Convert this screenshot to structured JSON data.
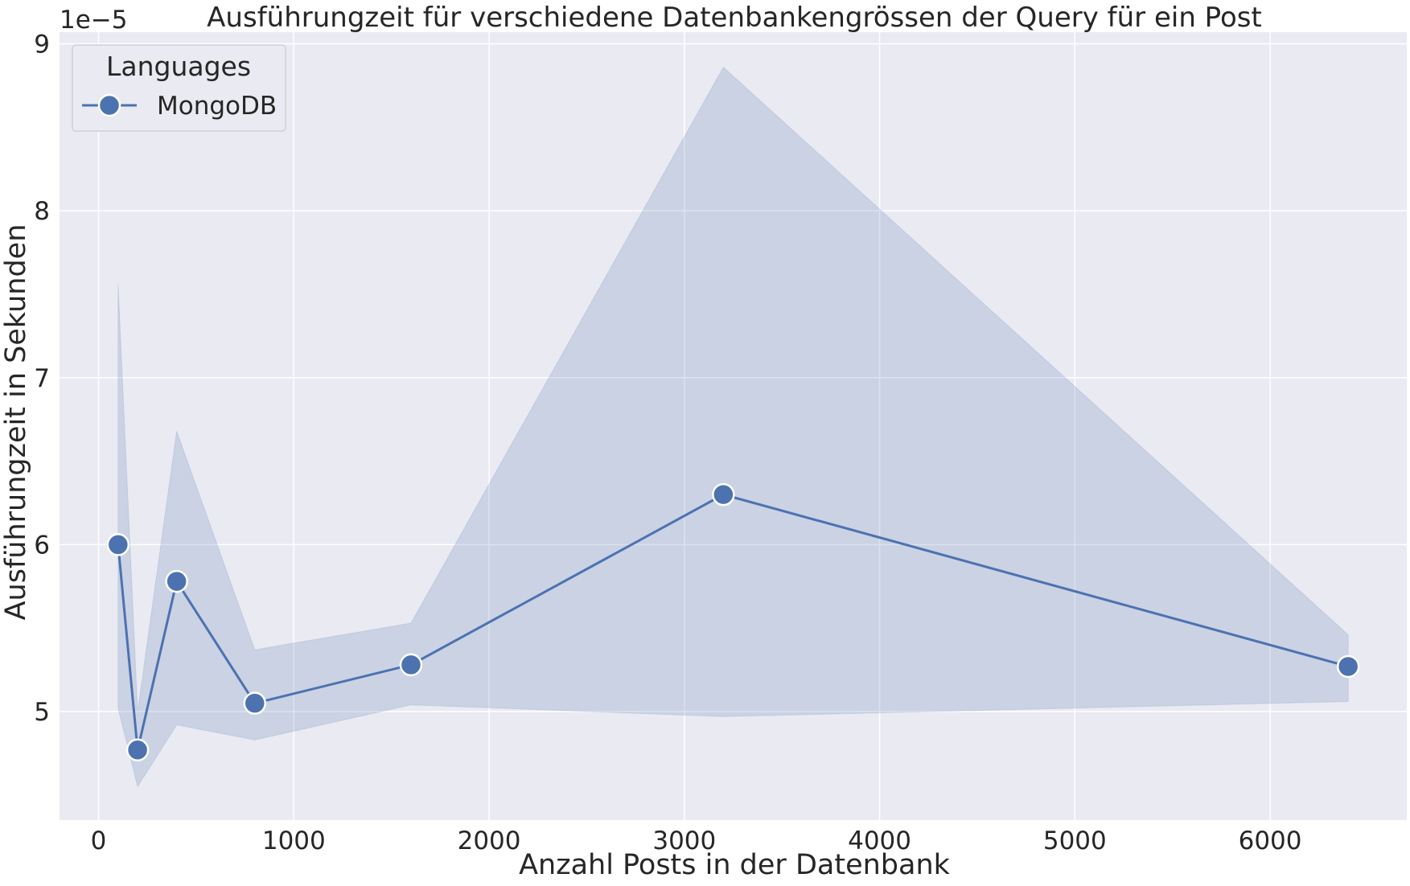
{
  "chart_data": {
    "type": "line",
    "title": "Ausführungzeit für verschiedene Datenbankengrössen der Query für ein Post",
    "xlabel": "Anzahl Posts in der Datenbank",
    "ylabel": "Ausführungzeit in Sekunden",
    "y_offset_label": "1e−5",
    "xlim": [
      -200,
      6700
    ],
    "ylim": [
      4.35,
      9.07
    ],
    "x_ticks": [
      0,
      1000,
      2000,
      3000,
      4000,
      5000,
      6000
    ],
    "y_ticks": [
      5,
      6,
      7,
      8,
      9
    ],
    "grid": true,
    "legend": {
      "title": "Languages",
      "placement": "upper-left"
    },
    "colors": {
      "background": "#eaeaf2",
      "grid": "#ffffff",
      "line": "#4c72b0",
      "band": "#4c72b0"
    },
    "series": [
      {
        "name": "MongoDB",
        "x": [
          100,
          200,
          400,
          800,
          1600,
          3200,
          6400
        ],
        "y": [
          6.0,
          4.77,
          5.78,
          5.05,
          5.28,
          6.3,
          5.27
        ],
        "ci_lower": [
          5.02,
          4.55,
          4.92,
          4.83,
          5.04,
          4.97,
          5.06
        ],
        "ci_upper": [
          7.56,
          5.0,
          6.68,
          5.37,
          5.53,
          8.86,
          5.46
        ]
      }
    ]
  }
}
